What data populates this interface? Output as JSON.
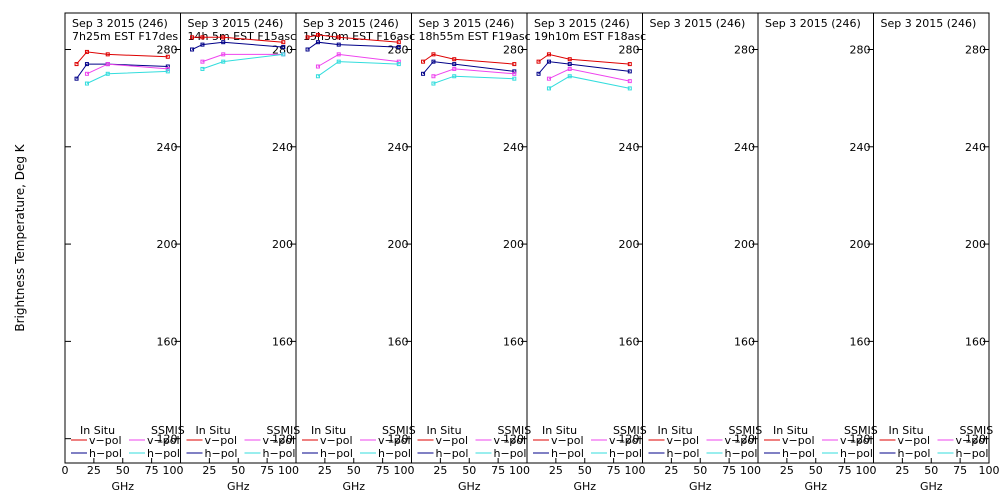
{
  "chart_data": {
    "type": "line",
    "ylabel": "Brightness Temperature, Deg K",
    "xlabel": "GHz",
    "ylim": [
      110,
      295
    ],
    "xlim": [
      0,
      100
    ],
    "yticks": [
      120,
      160,
      200,
      240,
      280
    ],
    "xticks": [
      0,
      25,
      50,
      75,
      100
    ],
    "first_panel_xtick_labels": [
      "0",
      "25",
      "50",
      "75",
      "100"
    ],
    "other_panel_xtick_labels": [
      "25",
      "50",
      "75",
      "100"
    ],
    "legend": {
      "insitu_heading": "In Situ",
      "ssmis_heading": "SSMIS",
      "vpol_label": "v−pol",
      "hpol_label": "h−pol"
    },
    "colors": {
      "insitu_v": "#dd0000",
      "insitu_h": "#000088",
      "ssmis_v": "#ee44ee",
      "ssmis_h": "#33dddd"
    },
    "panels": [
      {
        "title": "Sep 3 2015 (246)",
        "subtitle": "7h25m EST F17des",
        "insitu_v": {
          "x": [
            10,
            19,
            37,
            89
          ],
          "y": [
            274,
            279,
            278,
            277
          ]
        },
        "insitu_h": {
          "x": [
            10,
            19,
            37,
            89
          ],
          "y": [
            268,
            274,
            274,
            273
          ]
        },
        "ssmis_v": {
          "x": [
            19,
            37,
            89
          ],
          "y": [
            270,
            274,
            272
          ]
        },
        "ssmis_h": {
          "x": [
            19,
            37,
            89
          ],
          "y": [
            266,
            270,
            271
          ]
        }
      },
      {
        "title": "Sep 3 2015 (246)",
        "subtitle": "14h 5m  EST  F15asc",
        "insitu_v": {
          "x": [
            10,
            19,
            37,
            89
          ],
          "y": [
            285,
            285,
            285,
            283
          ]
        },
        "insitu_h": {
          "x": [
            10,
            19,
            37,
            89
          ],
          "y": [
            280,
            282,
            283,
            281
          ]
        },
        "ssmis_v": {
          "x": [
            19,
            37,
            89
          ],
          "y": [
            275,
            278,
            278
          ]
        },
        "ssmis_h": {
          "x": [
            19,
            37,
            89
          ],
          "y": [
            272,
            275,
            278
          ]
        }
      },
      {
        "title": "Sep 3 2015 (246)",
        "subtitle": "15h30m  EST  F16asc",
        "insitu_v": {
          "x": [
            10,
            19,
            37,
            89
          ],
          "y": [
            285,
            286,
            285,
            283
          ]
        },
        "insitu_h": {
          "x": [
            10,
            19,
            37,
            89
          ],
          "y": [
            280,
            283,
            282,
            281
          ]
        },
        "ssmis_v": {
          "x": [
            19,
            37,
            89
          ],
          "y": [
            273,
            278,
            275
          ]
        },
        "ssmis_h": {
          "x": [
            19,
            37,
            89
          ],
          "y": [
            269,
            275,
            274
          ]
        }
      },
      {
        "title": "Sep 3 2015 (246)",
        "subtitle": "18h55m  EST  F19asc",
        "insitu_v": {
          "x": [
            10,
            19,
            37,
            89
          ],
          "y": [
            275,
            278,
            276,
            274
          ]
        },
        "insitu_h": {
          "x": [
            10,
            19,
            37,
            89
          ],
          "y": [
            270,
            275,
            274,
            271
          ]
        },
        "ssmis_v": {
          "x": [
            19,
            37,
            89
          ],
          "y": [
            269,
            272,
            270
          ]
        },
        "ssmis_h": {
          "x": [
            19,
            37,
            89
          ],
          "y": [
            266,
            269,
            268
          ]
        }
      },
      {
        "title": "Sep 3 2015 (246)",
        "subtitle": "19h10m  EST  F18asc",
        "insitu_v": {
          "x": [
            10,
            19,
            37,
            89
          ],
          "y": [
            275,
            278,
            276,
            274
          ]
        },
        "insitu_h": {
          "x": [
            10,
            19,
            37,
            89
          ],
          "y": [
            270,
            275,
            274,
            271
          ]
        },
        "ssmis_v": {
          "x": [
            19,
            37,
            89
          ],
          "y": [
            268,
            272,
            267
          ]
        },
        "ssmis_h": {
          "x": [
            19,
            37,
            89
          ],
          "y": [
            264,
            269,
            264
          ]
        }
      },
      {
        "title": "Sep 3 2015 (246)",
        "subtitle": ""
      },
      {
        "title": "Sep 3 2015 (246)",
        "subtitle": ""
      },
      {
        "title": "Sep 3 2015 (246)",
        "subtitle": ""
      }
    ]
  }
}
